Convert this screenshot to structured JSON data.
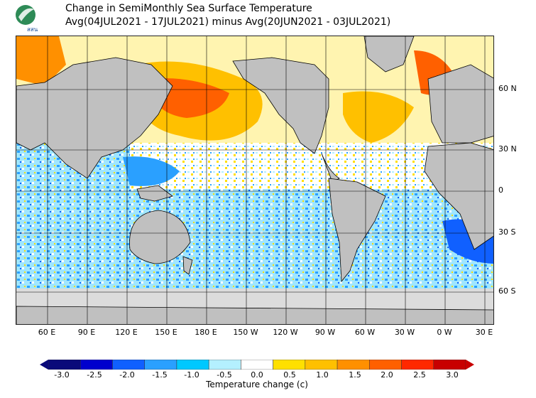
{
  "header": {
    "title_line1": "Change in SemiMonthly Sea Surface Temperature",
    "title_line2": "Avg(04JUL2021 - 17JUL2021) minus Avg(20JUN2021 - 03JUL2021)",
    "logo_text": "สสน"
  },
  "map": {
    "lat_labels": [
      "60 N",
      "30 N",
      "0",
      "30 S",
      "60 S"
    ],
    "lon_labels": [
      "60 E",
      "90 E",
      "120 E",
      "150 E",
      "180 E",
      "150 W",
      "120 W",
      "90 W",
      "60 W",
      "30 W",
      "0 W",
      "30 E"
    ],
    "land_color": "#c0c0c0",
    "ice_color": "#dcdcdc"
  },
  "colorbar": {
    "title": "Temperature change  (c)",
    "tick_labels": [
      "-3.0",
      "-2.5",
      "-2.0",
      "-1.5",
      "-1.0",
      "-0.5",
      "0.0",
      "0.5",
      "1.0",
      "1.5",
      "2.0",
      "2.5",
      "3.0"
    ],
    "colors": [
      "#0a0a7a",
      "#0000cd",
      "#1060ff",
      "#2aa0ff",
      "#00c8ff",
      "#b4f0ff",
      "#ffffff",
      "#ffe000",
      "#ffc000",
      "#ff9000",
      "#ff6000",
      "#ff2800",
      "#c80000"
    ]
  }
}
